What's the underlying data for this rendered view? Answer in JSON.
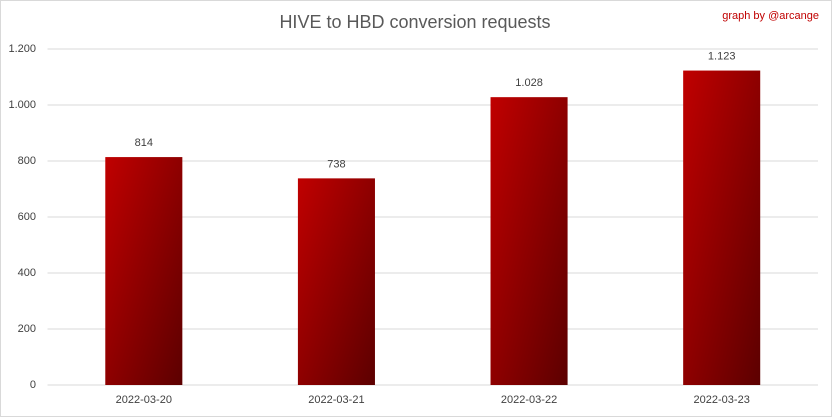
{
  "chart_data": {
    "type": "bar",
    "title": "HIVE to HBD conversion requests",
    "annotation": "graph by @arcange",
    "categories": [
      "2022-03-20",
      "2022-03-21",
      "2022-03-22",
      "2022-03-23"
    ],
    "values": [
      814,
      738,
      1028,
      1123
    ],
    "value_labels": [
      "814",
      "738",
      "1.028",
      "1.123"
    ],
    "color": "#c00000",
    "gradient_color": "#5c0000",
    "ylim": [
      0,
      1200
    ],
    "yticks": [
      0,
      200,
      400,
      600,
      800,
      {
        "value": 1000,
        "label": "1.000"
      },
      {
        "value": 1200,
        "label": "1.200"
      }
    ],
    "grid": true
  }
}
